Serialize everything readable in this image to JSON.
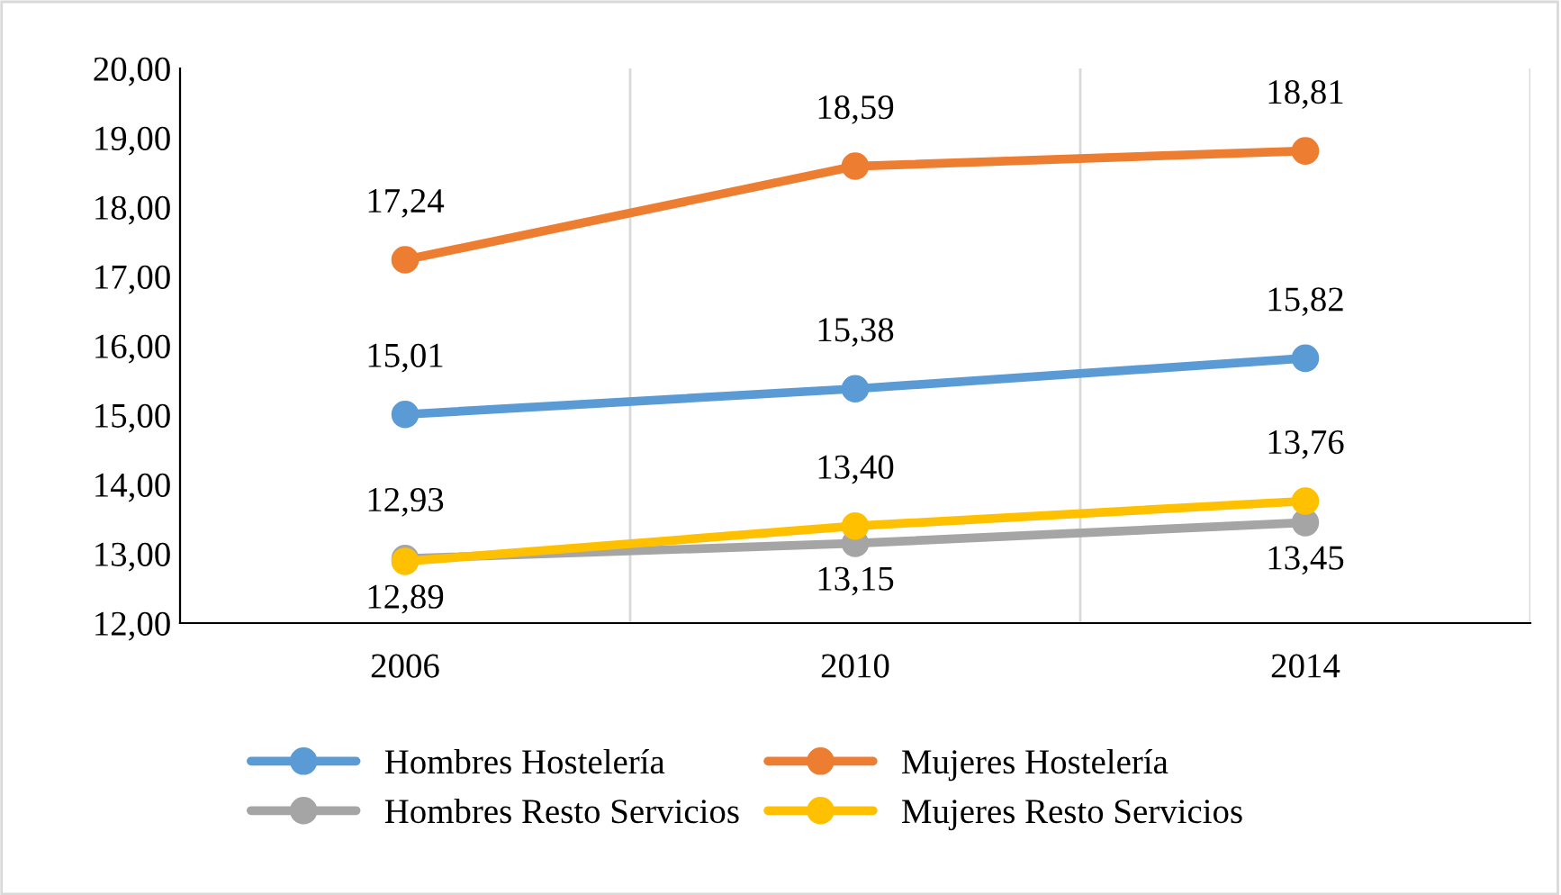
{
  "chart_data": {
    "type": "line",
    "categories": [
      "2006",
      "2010",
      "2014"
    ],
    "series": [
      {
        "name": "Hombres Hostelería",
        "color": "#5b9bd5",
        "values": [
          15.01,
          15.38,
          15.82
        ],
        "value_labels": [
          "15,01",
          "15,38",
          "15,82"
        ]
      },
      {
        "name": "Mujeres Hostelería",
        "color": "#ed7d31",
        "values": [
          17.24,
          18.59,
          18.81
        ],
        "value_labels": [
          "17,24",
          "18,59",
          "18,81"
        ]
      },
      {
        "name": "Hombres Resto Servicios",
        "color": "#a5a5a5",
        "values": [
          12.93,
          13.15,
          13.45
        ],
        "value_labels": [
          "12,93",
          "13,15",
          "13,45"
        ]
      },
      {
        "name": "Mujeres Resto Servicios",
        "color": "#ffc000",
        "values": [
          12.89,
          13.4,
          13.76
        ],
        "value_labels": [
          "12,89",
          "13,40",
          "13,76"
        ]
      }
    ],
    "ylim": [
      12,
      20
    ],
    "yticks": [
      {
        "value": 12,
        "label": "12,00"
      },
      {
        "value": 13,
        "label": "13,00"
      },
      {
        "value": 14,
        "label": "14,00"
      },
      {
        "value": 15,
        "label": "15,00"
      },
      {
        "value": 16,
        "label": "16,00"
      },
      {
        "value": 17,
        "label": "17,00"
      },
      {
        "value": 18,
        "label": "18,00"
      },
      {
        "value": 19,
        "label": "19,00"
      },
      {
        "value": 20,
        "label": "20,00"
      }
    ],
    "grid": "x",
    "legend": "bottom",
    "marker": "circle",
    "line_style": "solid"
  }
}
